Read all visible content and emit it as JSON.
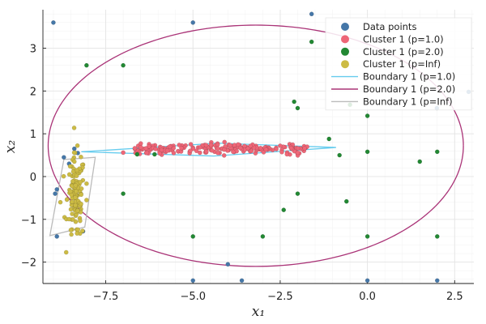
{
  "chart_data": {
    "type": "scatter",
    "xlim": [
      -9.3,
      3.05
    ],
    "ylim": [
      -2.5,
      3.9
    ],
    "xticks": [
      -7.5,
      -5.0,
      -2.5,
      0.0,
      2.5
    ],
    "xtick_labels": [
      "−7.5",
      "−5.0",
      "−2.5",
      "0.0",
      "2.5"
    ],
    "yticks": [
      -2,
      -1,
      0,
      1,
      2,
      3
    ],
    "ytick_labels": [
      "−2",
      "−1",
      "0",
      "1",
      "2",
      "3"
    ],
    "xlabel": "x₁",
    "ylabel": "x₂",
    "grid": true,
    "legend_position": "top-right",
    "series": [
      {
        "name": "Data points",
        "kind": "points",
        "color": "#4577a8",
        "points": [
          [
            -9,
            3.6
          ],
          [
            -5,
            3.6
          ],
          [
            -1.6,
            3.8
          ],
          [
            2.9,
            1.98
          ],
          [
            1.99,
            1.6
          ],
          [
            -8.4,
            0.65
          ],
          [
            -8.7,
            0.45
          ],
          [
            -8.3,
            0.55
          ],
          [
            -8.55,
            0.3
          ],
          [
            -8.9,
            -0.3
          ],
          [
            -8.95,
            -0.4
          ],
          [
            -8.9,
            -1.4
          ],
          [
            -8.15,
            -1.28
          ],
          [
            -4,
            -2.05
          ],
          [
            -3.6,
            -2.43
          ],
          [
            -5,
            -2.43
          ],
          [
            0,
            -2.43
          ],
          [
            2,
            -2.43
          ]
        ]
      },
      {
        "name": "Cluster 1 (p=1.0)",
        "kind": "points",
        "color": "#ee6677",
        "center": [
          -4.2,
          0.66
        ],
        "spread": [
          4.5,
          0.065
        ],
        "count": 200,
        "extra_points": [
          [
            -7,
            0.56
          ],
          [
            -5.9,
            0.62
          ],
          [
            -2.5,
            0.72
          ],
          [
            -1.8,
            0.66
          ]
        ]
      },
      {
        "name": "Cluster 1 (p=2.0)",
        "kind": "points",
        "color": "#228833",
        "points": [
          [
            -8.05,
            2.6
          ],
          [
            -7,
            2.6
          ],
          [
            -1.6,
            3.15
          ],
          [
            -2.1,
            1.75
          ],
          [
            -2,
            1.6
          ],
          [
            -0.5,
            1.68
          ],
          [
            0,
            1.42
          ],
          [
            -1.1,
            0.88
          ],
          [
            -0.8,
            0.5
          ],
          [
            0,
            0.58
          ],
          [
            2,
            0.58
          ],
          [
            1.5,
            0.35
          ],
          [
            -6.6,
            0.52
          ],
          [
            -6.1,
            0.52
          ],
          [
            -7,
            -0.4
          ],
          [
            -2,
            -0.4
          ],
          [
            -0.6,
            -0.58
          ],
          [
            -2.4,
            -0.78
          ],
          [
            -5,
            -1.4
          ],
          [
            -3,
            -1.4
          ],
          [
            0,
            -1.4
          ],
          [
            2,
            -1.4
          ]
        ]
      },
      {
        "name": "Cluster 1 (p=Inf)",
        "kind": "points",
        "color": "#ccbb44",
        "center": [
          -8.35,
          -0.5
        ],
        "spread": [
          0.3,
          0.5
        ],
        "count": 120,
        "extra_points": [
          [
            -8.4,
            0.35
          ],
          [
            -8.8,
            -0.6
          ],
          [
            -8.05,
            -0.55
          ],
          [
            -8.5,
            -1.25
          ]
        ]
      },
      {
        "name": "Boundary 1 (p=1.0)",
        "kind": "boundary",
        "color": "#66ccee",
        "vertices": [
          [
            -8.2,
            0.58
          ],
          [
            -4.3,
            0.78
          ],
          [
            -0.9,
            0.68
          ],
          [
            -4.4,
            0.48
          ]
        ]
      },
      {
        "name": "Boundary 1 (p=2.0)",
        "kind": "boundary",
        "color": "#aa3377",
        "center": [
          -3.2,
          0.72
        ],
        "radii": [
          5.95,
          2.82
        ],
        "rotation_deg": 0
      },
      {
        "name": "Boundary 1 (p=Inf)",
        "kind": "boundary",
        "color": "#bbbbbb",
        "vertices": [
          [
            -8.7,
            0.4
          ],
          [
            -7.8,
            0.45
          ],
          [
            -8.1,
            -1.18
          ],
          [
            -9.1,
            -1.38
          ]
        ]
      }
    ]
  }
}
